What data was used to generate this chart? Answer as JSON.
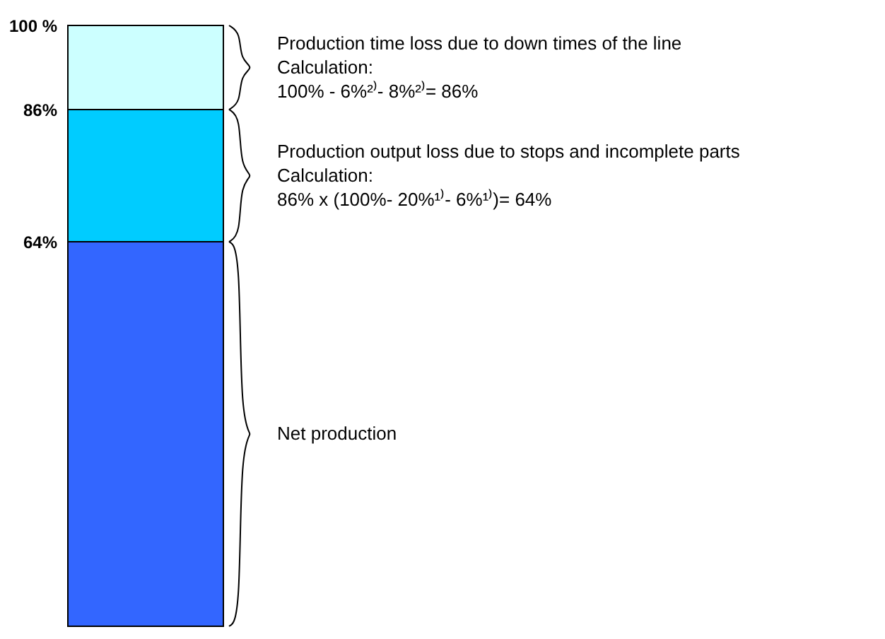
{
  "chart_data": {
    "type": "bar",
    "stacked": true,
    "categories": [
      null
    ],
    "series": [
      {
        "color": "#3366ff",
        "values": [
          64
        ]
      },
      {
        "color": "#00ccff",
        "values": [
          22
        ]
      },
      {
        "color": "#ccffff",
        "values": [
          14
        ]
      }
    ],
    "ylim": [
      0,
      100
    ],
    "yticks": [
      {
        "value": 64,
        "label": "64%"
      },
      {
        "value": 86,
        "label": "86%"
      },
      {
        "value": 100,
        "label": "100 %"
      }
    ],
    "grid": false,
    "legend": false,
    "annotations": [
      "Production time loss due to down times of the line",
      "Calculation:",
      "100% - 6%²⁾- 8%²⁾= 86%",
      "Production output loss due to stops and incomplete parts",
      "Calculation:",
      "86% x (100%- 20%¹⁾- 6%¹⁾)= 64%",
      "Net production"
    ]
  }
}
